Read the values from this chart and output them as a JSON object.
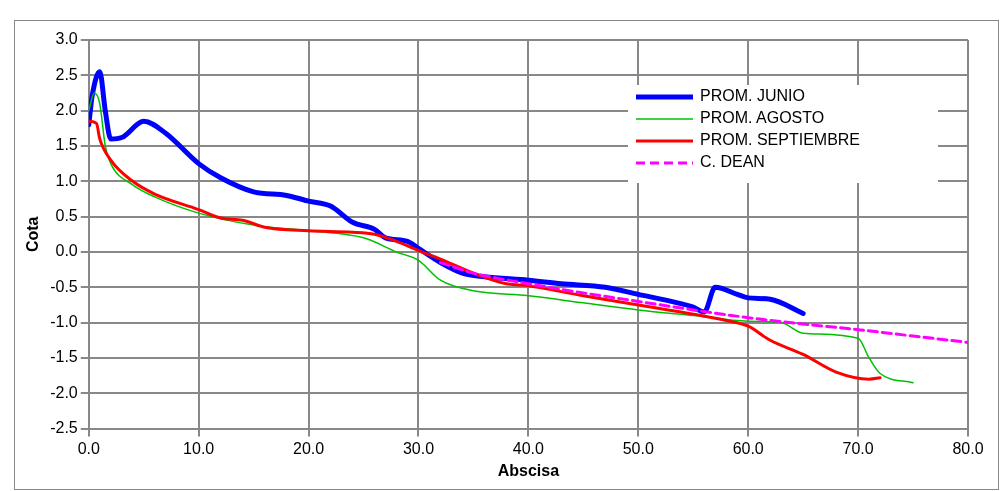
{
  "chart_data": {
    "type": "line",
    "xlabel": "Abscisa",
    "ylabel": "Cota",
    "xlim": [
      0,
      80
    ],
    "ylim": [
      -2.5,
      3.0
    ],
    "xticks": [
      {
        "value": 0,
        "label": "0.0"
      },
      {
        "value": 10,
        "label": "10.0"
      },
      {
        "value": 20,
        "label": "20.0"
      },
      {
        "value": 30,
        "label": "30.0"
      },
      {
        "value": 40,
        "label": "40.0"
      },
      {
        "value": 50,
        "label": "50.0"
      },
      {
        "value": 60,
        "label": "60.0"
      },
      {
        "value": 70,
        "label": "70.0"
      },
      {
        "value": 80,
        "label": "80.0"
      }
    ],
    "yticks": [
      {
        "value": -2.5,
        "label": "-2.5"
      },
      {
        "value": -2,
        "label": "-2.0"
      },
      {
        "value": -1.5,
        "label": "-1.5"
      },
      {
        "value": -1,
        "label": "-1.0"
      },
      {
        "value": -0.5,
        "label": "-0.5"
      },
      {
        "value": 0,
        "label": "0.0"
      },
      {
        "value": 0.5,
        "label": "0.5"
      },
      {
        "value": 1,
        "label": "1.0"
      },
      {
        "value": 1.5,
        "label": "1.5"
      },
      {
        "value": 2,
        "label": "2.0"
      },
      {
        "value": 2.5,
        "label": "2.5"
      },
      {
        "value": 3,
        "label": "3.0"
      }
    ],
    "grid": true,
    "legend": "top right",
    "marker": "none",
    "series": [
      {
        "name": "PROM. JUNIO",
        "color": "#0000ff",
        "line_style": "solid",
        "x": [
          0,
          0.3,
          1,
          1.5,
          2,
          3,
          5,
          7,
          10,
          12,
          15,
          18,
          20,
          22,
          24,
          26,
          27,
          29,
          30,
          32,
          34,
          36,
          40,
          43,
          47,
          50,
          53,
          55,
          56,
          57,
          59,
          60,
          62,
          65
        ],
        "values": [
          1.8,
          2.2,
          2.55,
          2.0,
          1.6,
          1.62,
          1.85,
          1.68,
          1.25,
          1.05,
          0.85,
          0.8,
          0.72,
          0.65,
          0.42,
          0.32,
          0.2,
          0.15,
          0.05,
          -0.15,
          -0.3,
          -0.35,
          -0.4,
          -0.45,
          -0.5,
          -0.6,
          -0.7,
          -0.78,
          -0.85,
          -0.5,
          -0.6,
          -0.65,
          -0.67,
          -0.87
        ]
      },
      {
        "name": "PROM. AGOSTO",
        "color": "#00c000",
        "line_style": "solid",
        "x": [
          0,
          0.5,
          1,
          1.5,
          2,
          4,
          6,
          10,
          15,
          20,
          25,
          28,
          30,
          32,
          35,
          40,
          45,
          50,
          55,
          60,
          63,
          65,
          70,
          71,
          72,
          75
        ],
        "values": [
          2.0,
          2.25,
          2.1,
          1.5,
          1.25,
          0.95,
          0.78,
          0.55,
          0.38,
          0.3,
          0.2,
          0.0,
          -0.12,
          -0.4,
          -0.55,
          -0.62,
          -0.72,
          -0.82,
          -0.9,
          -0.98,
          -1.0,
          -1.15,
          -1.22,
          -1.5,
          -1.72,
          -1.85
        ]
      },
      {
        "name": "PROM. SEPTIEMBRE",
        "color": "#ff0000",
        "line_style": "solid",
        "x": [
          0,
          0.7,
          1,
          2,
          4,
          6,
          10,
          12,
          14,
          16,
          20,
          24,
          26,
          28,
          30,
          32,
          35,
          38,
          40,
          45,
          50,
          55,
          58,
          60,
          62,
          65,
          68,
          71,
          72
        ],
        "values": [
          1.85,
          1.82,
          1.6,
          1.3,
          1.0,
          0.82,
          0.6,
          0.48,
          0.45,
          0.35,
          0.3,
          0.28,
          0.25,
          0.15,
          0.02,
          -0.1,
          -0.3,
          -0.45,
          -0.48,
          -0.62,
          -0.75,
          -0.88,
          -0.97,
          -1.05,
          -1.25,
          -1.45,
          -1.7,
          -1.8,
          -1.78
        ]
      },
      {
        "name": "C. DEAN",
        "color": "#ff00ff",
        "line_style": "dashed",
        "x": [
          32,
          35,
          40,
          45,
          50,
          55,
          60,
          65,
          70,
          75,
          80
        ],
        "values": [
          -0.15,
          -0.3,
          -0.45,
          -0.58,
          -0.7,
          -0.82,
          -0.93,
          -1.02,
          -1.1,
          -1.19,
          -1.28
        ]
      }
    ]
  }
}
